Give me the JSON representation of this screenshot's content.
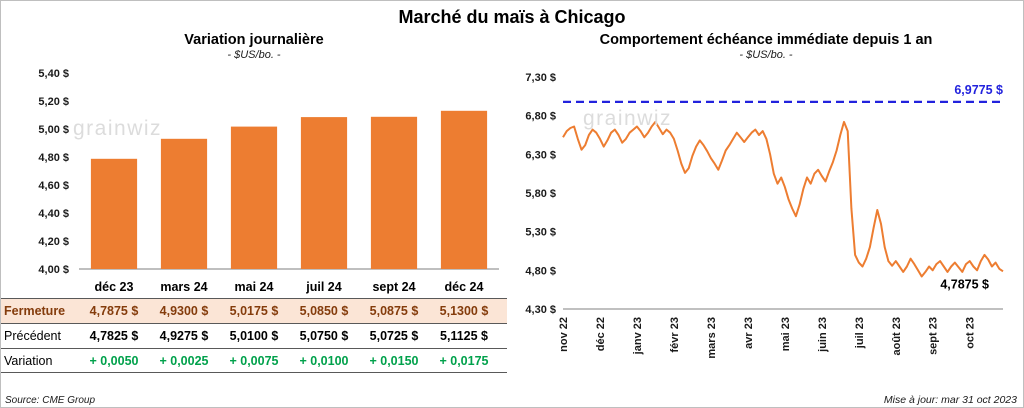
{
  "page_title": "Marché du maïs à Chicago",
  "watermark": "grainwiz",
  "left_panel": {
    "title": "Variation journalière",
    "subtitle": "- $US/bo. -",
    "source": "Source: CME Group"
  },
  "right_panel": {
    "title": "Comportement échéance immédiate depuis 1 an",
    "subtitle": "- $US/bo. -",
    "updated": "Mise à jour: mar 31 oct 2023"
  },
  "table": {
    "rows": [
      {
        "key": "fermeture",
        "label": "Fermeture",
        "values": [
          "4,7875  $",
          "4,9300  $",
          "5,0175  $",
          "5,0850  $",
          "5,0875  $",
          "5,1300  $"
        ]
      },
      {
        "key": "precedent",
        "label": "Précédent",
        "values": [
          "4,7825  $",
          "4,9275  $",
          "5,0100  $",
          "5,0750  $",
          "5,0725  $",
          "5,1125  $"
        ]
      },
      {
        "key": "variation",
        "label": "Variation",
        "values": [
          "+ 0,0050",
          "+ 0,0025",
          "+ 0,0075",
          "+ 0,0100",
          "+ 0,0150",
          "+ 0,0175"
        ]
      }
    ]
  },
  "colors": {
    "bar_orange": "#ED7D31",
    "line_orange": "#ED7D31",
    "dashed_blue": "#2222DD",
    "fermeture_bg": "#FBE5D6",
    "fermeture_text": "#843C0C",
    "variation_green": "#00A14B"
  },
  "chart_data": [
    {
      "type": "bar",
      "title": "Variation journalière",
      "subtitle": "- $US/bo. -",
      "categories": [
        "déc 23",
        "mars 24",
        "mai 24",
        "juil 24",
        "sept 24",
        "déc 24"
      ],
      "values": [
        4.7875,
        4.93,
        5.0175,
        5.085,
        5.0875,
        5.13
      ],
      "ylim": [
        4.0,
        5.4
      ],
      "yticks": [
        4.0,
        4.2,
        4.4,
        4.6,
        4.8,
        5.0,
        5.2,
        5.4
      ],
      "ytick_labels": [
        "4,00 $",
        "4,20 $",
        "4,40 $",
        "4,60 $",
        "4,80 $",
        "5,00 $",
        "5,20 $",
        "5,40 $"
      ],
      "grid": false,
      "legend": "none"
    },
    {
      "type": "line",
      "title": "Comportement échéance immédiate depuis 1 an",
      "subtitle": "- $US/bo. -",
      "x_labels": [
        "nov 22",
        "déc 22",
        "janv 23",
        "févr 23",
        "mars 23",
        "avr 23",
        "mai 23",
        "juin 23",
        "juil 23",
        "août 23",
        "sept 23",
        "oct 23"
      ],
      "values": [
        6.52,
        6.6,
        6.64,
        6.66,
        6.5,
        6.36,
        6.42,
        6.55,
        6.62,
        6.58,
        6.5,
        6.4,
        6.48,
        6.58,
        6.62,
        6.55,
        6.45,
        6.5,
        6.58,
        6.62,
        6.66,
        6.6,
        6.52,
        6.58,
        6.66,
        6.72,
        6.64,
        6.56,
        6.62,
        6.58,
        6.5,
        6.35,
        6.18,
        6.06,
        6.12,
        6.28,
        6.4,
        6.48,
        6.42,
        6.34,
        6.25,
        6.18,
        6.1,
        6.22,
        6.35,
        6.42,
        6.5,
        6.58,
        6.52,
        6.46,
        6.52,
        6.58,
        6.62,
        6.55,
        6.6,
        6.5,
        6.3,
        6.05,
        5.92,
        6.0,
        5.88,
        5.72,
        5.6,
        5.5,
        5.65,
        5.85,
        6.0,
        5.92,
        6.05,
        6.1,
        6.02,
        5.95,
        6.08,
        6.2,
        6.35,
        6.55,
        6.72,
        6.6,
        5.6,
        5.0,
        4.9,
        4.85,
        4.95,
        5.1,
        5.35,
        5.58,
        5.4,
        5.1,
        4.92,
        4.86,
        4.92,
        4.85,
        4.78,
        4.85,
        4.95,
        4.88,
        4.8,
        4.72,
        4.78,
        4.85,
        4.8,
        4.88,
        4.92,
        4.85,
        4.78,
        4.85,
        4.9,
        4.84,
        4.78,
        4.88,
        4.92,
        4.85,
        4.8,
        4.92,
        5.0,
        4.94,
        4.85,
        4.9,
        4.82,
        4.7875
      ],
      "ylim": [
        4.3,
        7.3
      ],
      "yticks": [
        4.3,
        4.8,
        5.3,
        5.8,
        6.3,
        6.8,
        7.3
      ],
      "ytick_labels": [
        "4,30 $",
        "4,80 $",
        "5,30 $",
        "5,80 $",
        "6,30 $",
        "6,80 $",
        "7,30 $"
      ],
      "high_line": {
        "value": 6.9775,
        "label": "6,9775 $",
        "style": "dashed"
      },
      "last_point": {
        "value": 4.7875,
        "label": "4,7875 $"
      },
      "grid": false,
      "legend": "none"
    }
  ]
}
